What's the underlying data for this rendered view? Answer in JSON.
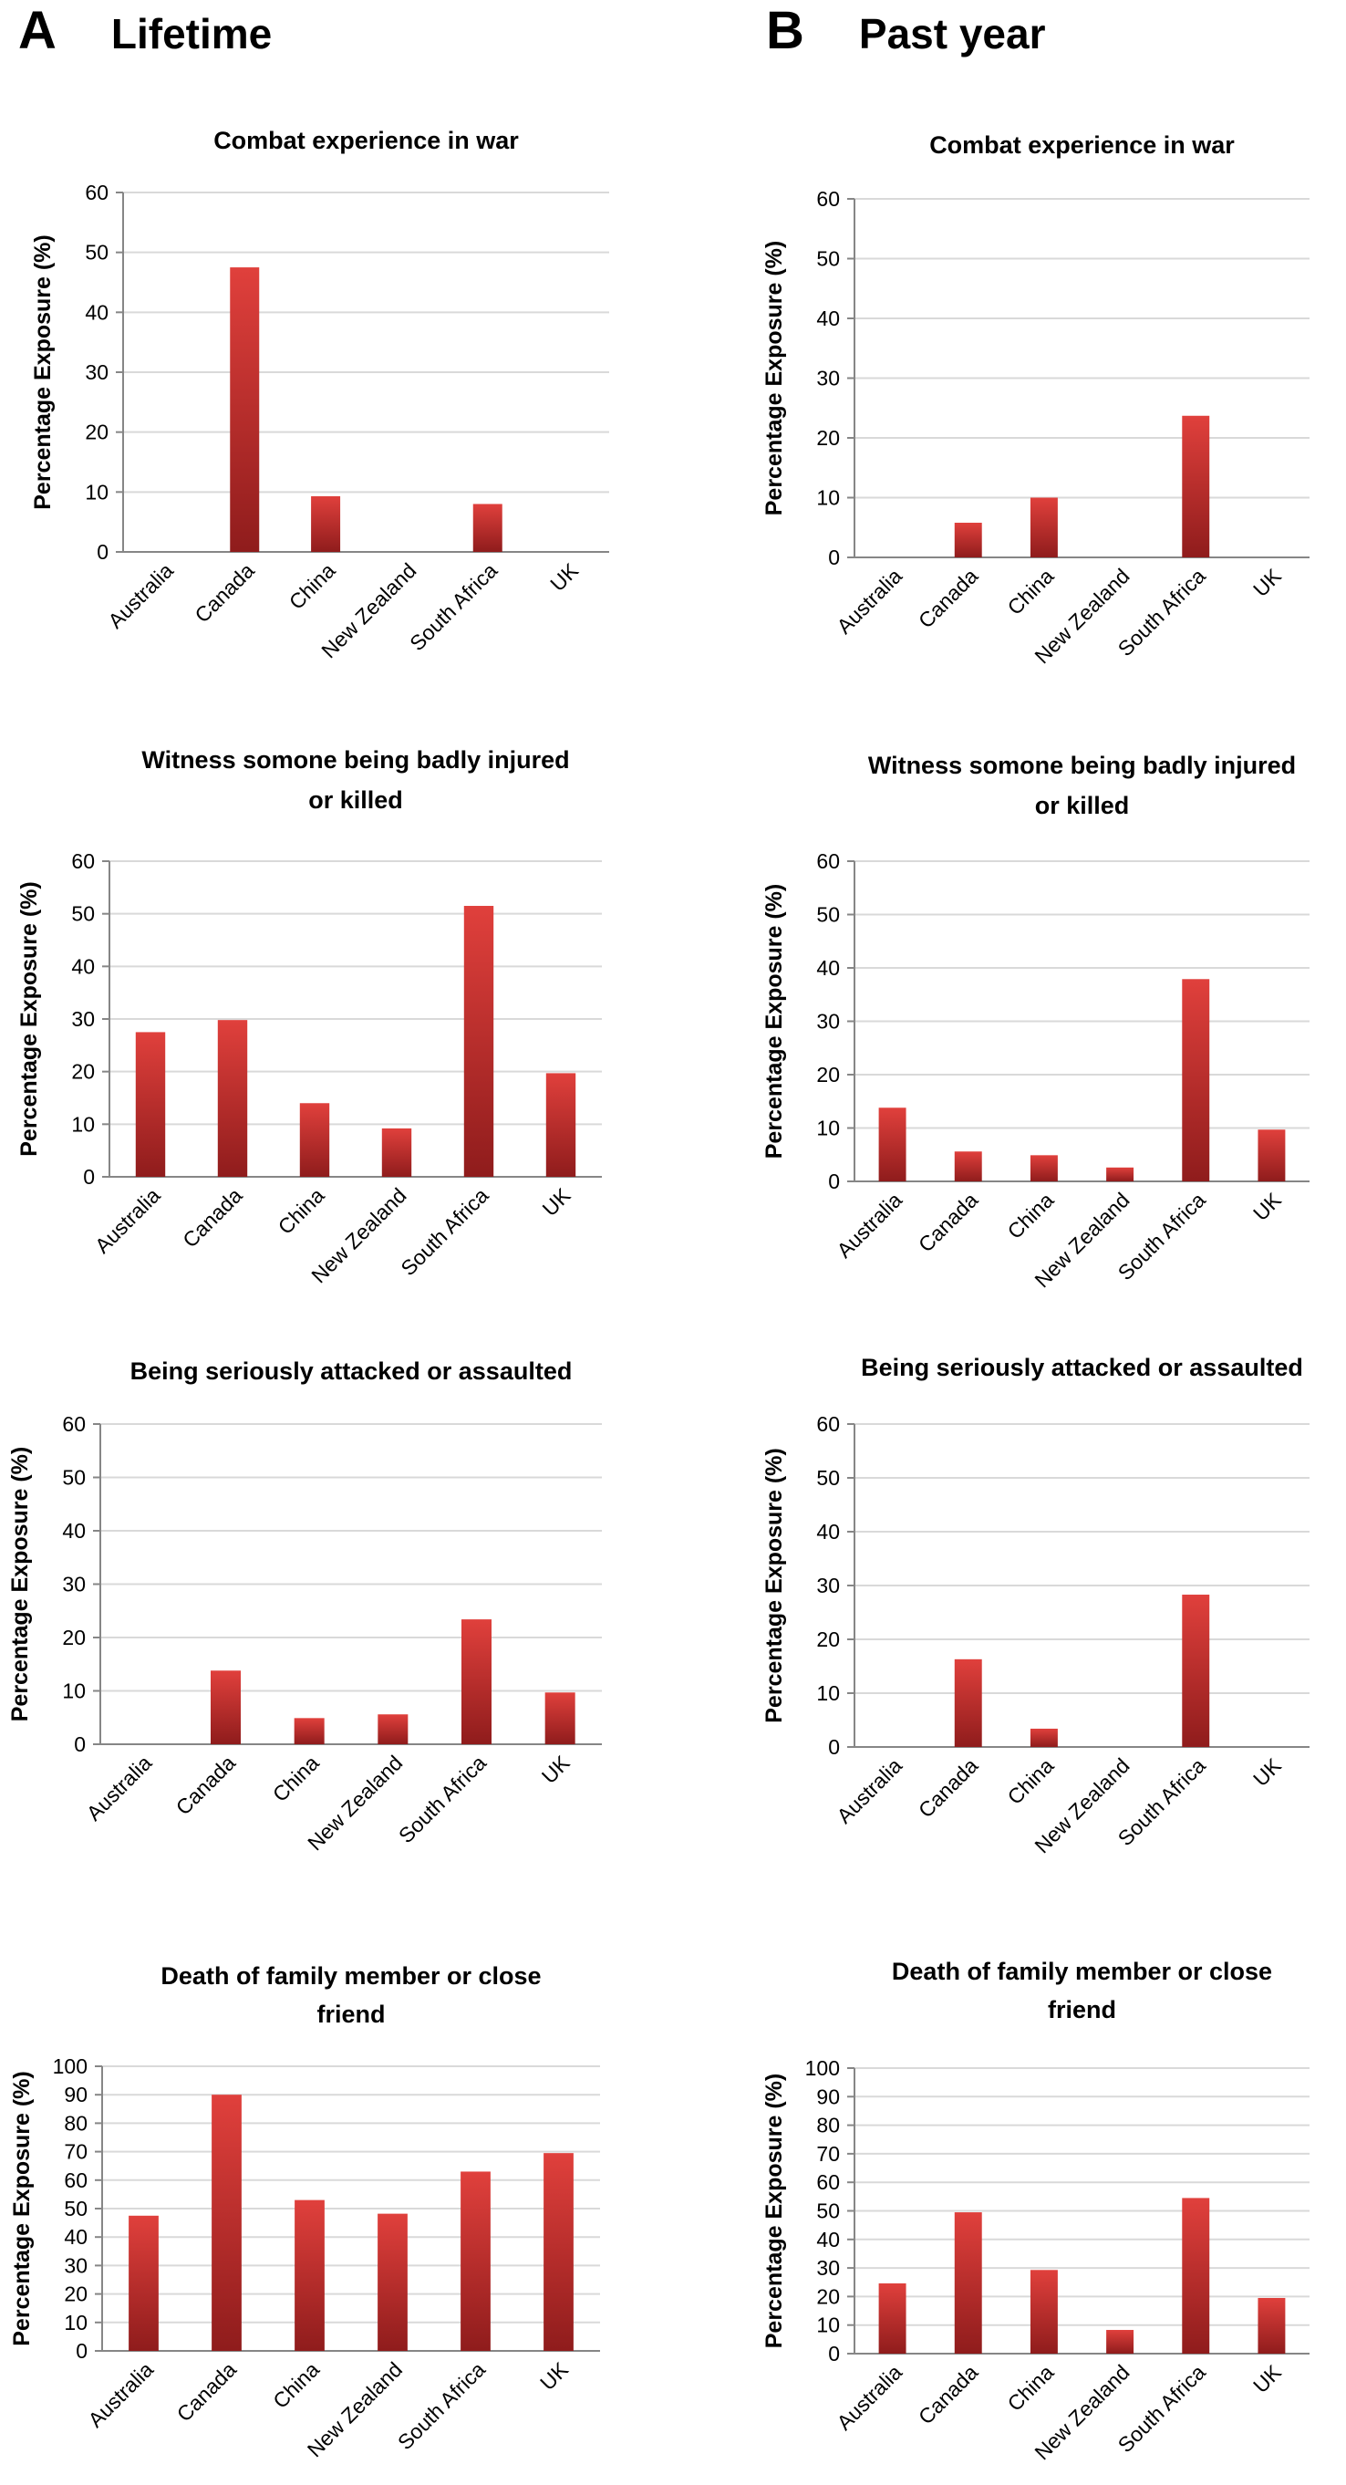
{
  "panels": [
    {
      "letter": "A",
      "title": "Lifetime"
    },
    {
      "letter": "B",
      "title": "Past year"
    }
  ],
  "colors": {
    "bar_top": "#e0403c",
    "bar_bottom": "#8f1c1c",
    "grid": "#d9d9d9",
    "axis": "#868686",
    "text": "#000000"
  },
  "chart_data": [
    {
      "type": "bar",
      "panel": "A",
      "title": [
        "Combat experience in war"
      ],
      "ylabel": "Percentage Exposure (%)",
      "xlabel": "",
      "categories": [
        "Australia",
        "Canada",
        "China",
        "New Zealand",
        "South Africa",
        "UK"
      ],
      "values": [
        0,
        47.5,
        9.3,
        0,
        8,
        0
      ],
      "ylim": [
        0,
        60
      ],
      "yticks": [
        0,
        10,
        20,
        30,
        40,
        50,
        60
      ],
      "grid": true
    },
    {
      "type": "bar",
      "panel": "B",
      "title": [
        "Combat experience in war"
      ],
      "ylabel": "Percentage Exposure (%)",
      "xlabel": "",
      "categories": [
        "Australia",
        "Canada",
        "China",
        "New Zealand",
        "South Africa",
        "UK"
      ],
      "values": [
        0,
        5.8,
        10,
        0,
        23.7,
        0
      ],
      "ylim": [
        0,
        60
      ],
      "yticks": [
        0,
        10,
        20,
        30,
        40,
        50,
        60
      ],
      "grid": true
    },
    {
      "type": "bar",
      "panel": "A",
      "title": [
        "Witness somone being badly injured",
        "or killed"
      ],
      "ylabel": "Percentage Exposure (%)",
      "xlabel": "",
      "categories": [
        "Australia",
        "Canada",
        "China",
        "New Zealand",
        "South Africa",
        "UK"
      ],
      "values": [
        27.5,
        29.8,
        14,
        9.2,
        51.5,
        19.7
      ],
      "ylim": [
        0,
        60
      ],
      "yticks": [
        0,
        10,
        20,
        30,
        40,
        50,
        60
      ],
      "grid": true
    },
    {
      "type": "bar",
      "panel": "B",
      "title": [
        "Witness somone being badly injured",
        "or killed"
      ],
      "ylabel": "Percentage Exposure (%)",
      "xlabel": "",
      "categories": [
        "Australia",
        "Canada",
        "China",
        "New Zealand",
        "South Africa",
        "UK"
      ],
      "values": [
        13.8,
        5.6,
        4.9,
        2.6,
        37.9,
        9.7
      ],
      "ylim": [
        0,
        60
      ],
      "yticks": [
        0,
        10,
        20,
        30,
        40,
        50,
        60
      ],
      "grid": true
    },
    {
      "type": "bar",
      "panel": "A",
      "title": [
        "Being seriously attacked or assaulted"
      ],
      "ylabel": "Percentage Exposure (%)",
      "xlabel": "",
      "categories": [
        "Australia",
        "Canada",
        "China",
        "New Zealand",
        "South Africa",
        "UK"
      ],
      "values": [
        0,
        13.8,
        4.9,
        5.6,
        23.4,
        9.7
      ],
      "ylim": [
        0,
        60
      ],
      "yticks": [
        0,
        10,
        20,
        30,
        40,
        50,
        60
      ],
      "grid": true
    },
    {
      "type": "bar",
      "panel": "B",
      "title": [
        "Being seriously attacked or assaulted"
      ],
      "ylabel": "Percentage Exposure (%)",
      "xlabel": "",
      "categories": [
        "Australia",
        "Canada",
        "China",
        "New Zealand",
        "South Africa",
        "UK"
      ],
      "values": [
        0,
        16.3,
        3.4,
        0,
        28.3,
        0
      ],
      "ylim": [
        0,
        60
      ],
      "yticks": [
        0,
        10,
        20,
        30,
        40,
        50,
        60
      ],
      "grid": true
    },
    {
      "type": "bar",
      "panel": "A",
      "title": [
        "Death of family member or close",
        "friend"
      ],
      "ylabel": "Percentage Exposure (%)",
      "xlabel": "",
      "categories": [
        "Australia",
        "Canada",
        "China",
        "New Zealand",
        "South Africa",
        "UK"
      ],
      "values": [
        47.5,
        90,
        53,
        48.2,
        63,
        69.5
      ],
      "ylim": [
        0,
        100
      ],
      "yticks": [
        0,
        10,
        20,
        30,
        40,
        50,
        60,
        70,
        80,
        90,
        100
      ],
      "grid": true
    },
    {
      "type": "bar",
      "panel": "B",
      "title": [
        "Death of family member or close",
        "friend"
      ],
      "ylabel": "Percentage Exposure (%)",
      "xlabel": "",
      "categories": [
        "Australia",
        "Canada",
        "China",
        "New Zealand",
        "South Africa",
        "UK"
      ],
      "values": [
        24.6,
        49.5,
        29.3,
        8.3,
        54.5,
        19.5
      ],
      "ylim": [
        0,
        100
      ],
      "yticks": [
        0,
        10,
        20,
        30,
        40,
        50,
        60,
        70,
        80,
        90,
        100
      ],
      "grid": true
    }
  ]
}
